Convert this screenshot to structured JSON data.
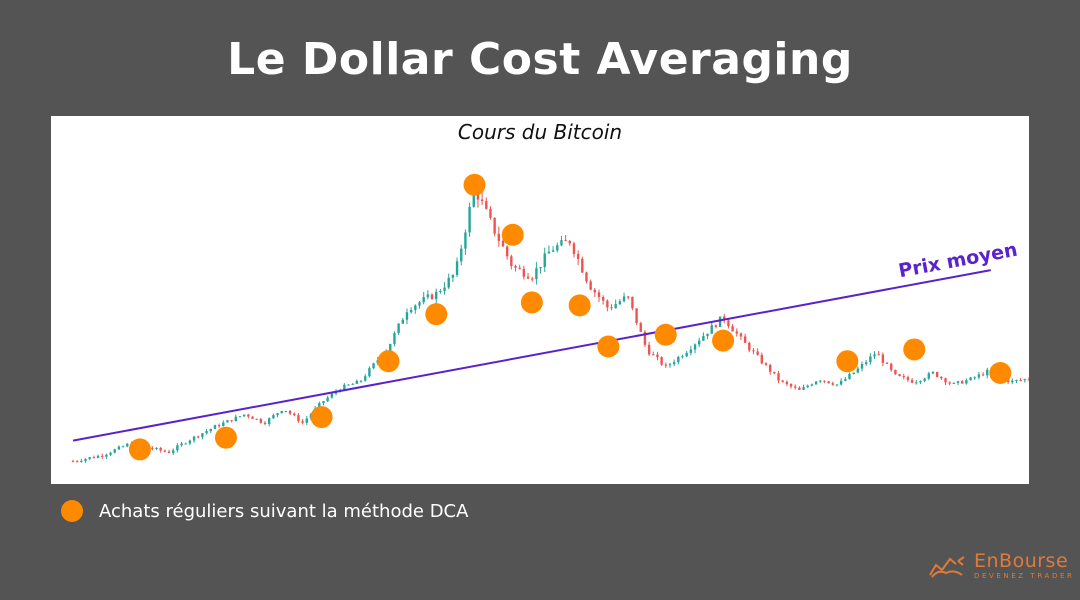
{
  "page": {
    "title": "Le Dollar Cost Averaging",
    "legend_label": "Achats réguliers suivant la méthode DCA"
  },
  "brand": {
    "name": "EnBourse",
    "tagline": "DEVENEZ TRADER",
    "icon": "bull-bear-icon",
    "color": "#e07a3a"
  },
  "colors": {
    "background": "#545454",
    "panel": "#ffffff",
    "dot": "#ff8a00",
    "avg_line": "#5a22cc",
    "candle_up": "#26a69a",
    "candle_down": "#ef5350"
  },
  "chart_data": {
    "type": "line",
    "title": "Cours du Bitcoin",
    "xlabel": "",
    "ylabel": "",
    "grid": false,
    "x": [
      0,
      3,
      6,
      10,
      12,
      15,
      18,
      20,
      22,
      24,
      26,
      28,
      30,
      33,
      35,
      38,
      40,
      42,
      44,
      46,
      48,
      50,
      52,
      54,
      56,
      58,
      60,
      62,
      64,
      66,
      68,
      70,
      72,
      74,
      76,
      78,
      80,
      82,
      84,
      86,
      88,
      90,
      92,
      94,
      96,
      98,
      100
    ],
    "price": [
      3,
      5,
      9,
      6,
      10,
      15,
      19,
      16,
      21,
      16,
      23,
      28,
      30,
      42,
      55,
      60,
      67,
      96,
      82,
      69,
      66,
      75,
      78,
      63,
      55,
      59,
      41,
      35,
      40,
      46,
      52,
      44,
      37,
      30,
      27,
      31,
      29,
      34,
      40,
      32,
      30,
      33,
      29,
      31,
      34,
      30,
      31
    ],
    "dca_purchases": {
      "x": [
        7,
        16,
        26,
        33,
        38,
        42,
        46,
        48,
        53,
        56,
        62,
        68,
        81,
        88,
        97
      ],
      "y": [
        7,
        11,
        18,
        37,
        53,
        97,
        80,
        57,
        56,
        42,
        46,
        44,
        37,
        41,
        33
      ]
    },
    "average_price_line": {
      "label": "Prix moyen",
      "x": [
        0,
        96
      ],
      "y": [
        10,
        68
      ]
    },
    "ylim": [
      0,
      100
    ],
    "xlim": [
      0,
      100
    ]
  }
}
